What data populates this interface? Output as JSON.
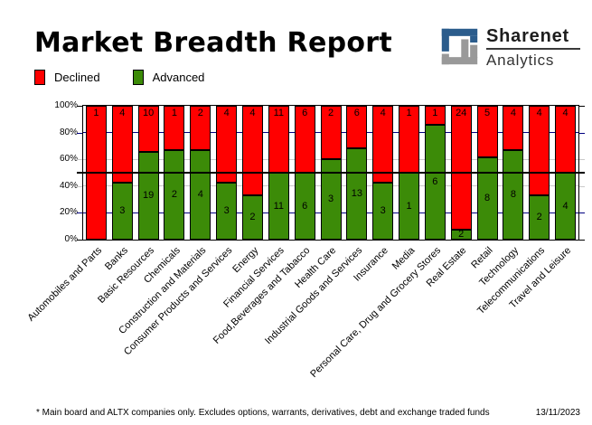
{
  "title": "Market Breadth Report",
  "logo": {
    "name": "Sharenet",
    "sub": "Analytics",
    "icon_blue": "#2b5c8c",
    "icon_gray": "#999999"
  },
  "legend": [
    {
      "label": "Declined",
      "color": "#ff0000"
    },
    {
      "label": "Advanced",
      "color": "#3c8b08"
    }
  ],
  "chart_data": {
    "type": "bar",
    "stacked": true,
    "unit": "percent of companies per sector (100% stacked)",
    "title": "Market Breadth Report",
    "legend_position": "top-left",
    "bar_value_labels": true,
    "categories": [
      "Automobiles and Parts",
      "Banks",
      "Basic Resources",
      "Chemicals",
      "Construction and Materials",
      "Consumer Products and Services",
      "Energy",
      "Financial Services",
      "Food,Beverages and Tabacco",
      "Health Care",
      "Industrial Goods and Services",
      "Insurance",
      "Media",
      "Personal Care, Drug and Grocery Stores",
      "Real Estate",
      "Retail",
      "Technology",
      "Telecommunications",
      "Travel and Leisure"
    ],
    "series": [
      {
        "name": "Declined",
        "color": "#ff0000",
        "values": [
          1,
          4,
          10,
          1,
          2,
          4,
          4,
          11,
          6,
          2,
          6,
          4,
          1,
          1,
          24,
          5,
          4,
          4,
          4
        ]
      },
      {
        "name": "Advanced",
        "color": "#3c8b08",
        "values": [
          0,
          3,
          19,
          2,
          4,
          3,
          2,
          11,
          6,
          3,
          13,
          3,
          1,
          6,
          2,
          8,
          8,
          2,
          4
        ]
      }
    ],
    "ylim": [
      0,
      100
    ],
    "yticks": [
      {
        "label": "100%",
        "value": 100
      },
      {
        "label": "80%",
        "value": 80
      },
      {
        "label": "60%",
        "value": 60
      },
      {
        "label": "40%",
        "value": 40
      },
      {
        "label": "20%",
        "value": 20
      },
      {
        "label": "0%",
        "value": 0
      }
    ],
    "gridlines": [
      {
        "value": 80,
        "color": "#000080"
      },
      {
        "value": 60,
        "color": "#c9c9c9"
      },
      {
        "value": 40,
        "color": "#c9c9c9"
      },
      {
        "value": 20,
        "color": "#000080"
      }
    ],
    "fifty_line": {
      "value": 50,
      "color": "#000000"
    }
  },
  "footer": {
    "note": "* Main board and ALTX companies only. Excludes options, warrants, derivatives, debt and exchange traded funds",
    "date": "13/11/2023"
  }
}
